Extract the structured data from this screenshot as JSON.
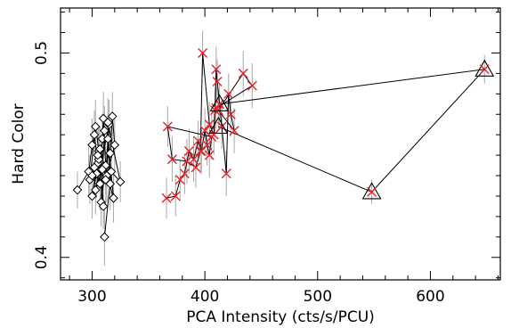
{
  "chart_data": {
    "type": "scatter",
    "xlabel": "PCA Intensity (cts/s/PCU)",
    "ylabel": "Hard Color",
    "xlim": [
      272,
      662
    ],
    "ylim": [
      0.389,
      0.522
    ],
    "x_ticks": [
      300,
      400,
      500,
      600
    ],
    "x_ticks_minor": [
      280,
      320,
      340,
      360,
      380,
      420,
      440,
      460,
      480,
      520,
      540,
      560,
      580,
      620,
      640,
      660
    ],
    "y_ticks": [
      0.4,
      0.5
    ],
    "y_ticks_minor": [
      0.39,
      0.41,
      0.42,
      0.43,
      0.44,
      0.45,
      0.46,
      0.47,
      0.48,
      0.49,
      0.51,
      0.52
    ],
    "grid": false,
    "legend": "none",
    "colors": {
      "black": "#000000",
      "red": "#e8202a",
      "errorbar": "#a8a8a8"
    },
    "series": [
      {
        "marker": "diamond",
        "color": "#000000",
        "connected": true,
        "points": [
          {
            "x": 287,
            "y": 0.433,
            "yerr": 0.009
          },
          {
            "x": 297,
            "y": 0.442,
            "yerr": 0.012
          },
          {
            "x": 300,
            "y": 0.455,
            "yerr": 0.013
          },
          {
            "x": 302,
            "y": 0.46,
            "yerr": 0.012
          },
          {
            "x": 305,
            "y": 0.446,
            "yerr": 0.014
          },
          {
            "x": 298,
            "y": 0.438,
            "yerr": 0.012
          },
          {
            "x": 303,
            "y": 0.464,
            "yerr": 0.013
          },
          {
            "x": 306,
            "y": 0.452,
            "yerr": 0.012
          },
          {
            "x": 300,
            "y": 0.43,
            "yerr": 0.011
          },
          {
            "x": 304,
            "y": 0.441,
            "yerr": 0.012
          },
          {
            "x": 307,
            "y": 0.436,
            "yerr": 0.013
          },
          {
            "x": 309,
            "y": 0.458,
            "yerr": 0.012
          },
          {
            "x": 310,
            "y": 0.468,
            "yerr": 0.013
          },
          {
            "x": 312,
            "y": 0.445,
            "yerr": 0.014
          },
          {
            "x": 308,
            "y": 0.427,
            "yerr": 0.012
          },
          {
            "x": 311,
            "y": 0.462,
            "yerr": 0.012
          },
          {
            "x": 306,
            "y": 0.448,
            "yerr": 0.011
          },
          {
            "x": 313,
            "y": 0.44,
            "yerr": 0.013
          },
          {
            "x": 315,
            "y": 0.465,
            "yerr": 0.012
          },
          {
            "x": 303,
            "y": 0.433,
            "yerr": 0.012
          },
          {
            "x": 309,
            "y": 0.443,
            "yerr": 0.014
          },
          {
            "x": 316,
            "y": 0.451,
            "yerr": 0.013
          },
          {
            "x": 318,
            "y": 0.469,
            "yerr": 0.012
          },
          {
            "x": 320,
            "y": 0.455,
            "yerr": 0.013
          },
          {
            "x": 312,
            "y": 0.438,
            "yerr": 0.012
          },
          {
            "x": 314,
            "y": 0.458,
            "yerr": 0.012
          },
          {
            "x": 319,
            "y": 0.429,
            "yerr": 0.012
          },
          {
            "x": 307,
            "y": 0.453,
            "yerr": 0.011
          },
          {
            "x": 310,
            "y": 0.425,
            "yerr": 0.011
          },
          {
            "x": 305,
            "y": 0.45,
            "yerr": 0.013
          },
          {
            "x": 302,
            "y": 0.444,
            "yerr": 0.012
          },
          {
            "x": 300,
            "y": 0.44,
            "yerr": 0.012
          },
          {
            "x": 316,
            "y": 0.436,
            "yerr": 0.013
          },
          {
            "x": 314,
            "y": 0.466,
            "yerr": 0.012
          },
          {
            "x": 325,
            "y": 0.437,
            "yerr": 0.01
          },
          {
            "x": 317,
            "y": 0.442,
            "yerr": 0.013
          },
          {
            "x": 311,
            "y": 0.41,
            "yerr": 0.014
          }
        ]
      },
      {
        "marker": "x",
        "color": "#e8202a",
        "connected": true,
        "points": [
          {
            "x": 366,
            "y": 0.429,
            "yerr": 0.01
          },
          {
            "x": 374,
            "y": 0.43,
            "yerr": 0.01
          },
          {
            "x": 378,
            "y": 0.438,
            "yerr": 0.01
          },
          {
            "x": 382,
            "y": 0.441,
            "yerr": 0.01
          },
          {
            "x": 386,
            "y": 0.452,
            "yerr": 0.011
          },
          {
            "x": 390,
            "y": 0.448,
            "yerr": 0.011
          },
          {
            "x": 394,
            "y": 0.457,
            "yerr": 0.01
          },
          {
            "x": 397,
            "y": 0.452,
            "yerr": 0.011
          },
          {
            "x": 400,
            "y": 0.462,
            "yerr": 0.011
          },
          {
            "x": 402,
            "y": 0.455,
            "yerr": 0.01
          },
          {
            "x": 404,
            "y": 0.45,
            "yerr": 0.011
          },
          {
            "x": 406,
            "y": 0.459,
            "yerr": 0.011
          },
          {
            "x": 367,
            "y": 0.464,
            "yerr": 0.01
          },
          {
            "x": 371,
            "y": 0.448,
            "yerr": 0.011
          },
          {
            "x": 384,
            "y": 0.447,
            "yerr": 0.011
          },
          {
            "x": 392,
            "y": 0.444,
            "yerr": 0.01
          },
          {
            "x": 396,
            "y": 0.452,
            "yerr": 0.011
          },
          {
            "x": 398,
            "y": 0.5,
            "yerr": 0.011
          },
          {
            "x": 404,
            "y": 0.465,
            "yerr": 0.011
          },
          {
            "x": 408,
            "y": 0.46,
            "yerr": 0.01
          },
          {
            "x": 409,
            "y": 0.472,
            "yerr": 0.011
          },
          {
            "x": 410,
            "y": 0.492,
            "yerr": 0.011
          },
          {
            "x": 411,
            "y": 0.486,
            "yerr": 0.011
          },
          {
            "x": 413,
            "y": 0.475,
            "yerr": 0.01
          },
          {
            "x": 415,
            "y": 0.464,
            "yerr": 0.011
          },
          {
            "x": 419,
            "y": 0.441,
            "yerr": 0.011
          },
          {
            "x": 421,
            "y": 0.48,
            "yerr": 0.01
          },
          {
            "x": 423,
            "y": 0.47,
            "yerr": 0.011
          },
          {
            "x": 426,
            "y": 0.462,
            "yerr": 0.011
          },
          {
            "x": 412,
            "y": 0.472,
            "yerr": 0.01
          },
          {
            "x": 434,
            "y": 0.49,
            "yerr": 0.011
          },
          {
            "x": 442,
            "y": 0.484,
            "yerr": 0.011
          },
          {
            "x": 410,
            "y": 0.473,
            "yerr": 0.01
          }
        ]
      },
      {
        "marker": "triangle",
        "color": "#000000",
        "connected": true,
        "points": [
          {
            "x": 413,
            "y": 0.475,
            "yerr": 0.0
          },
          {
            "x": 648,
            "y": 0.492,
            "yerr": 0.007
          },
          {
            "x": 548,
            "y": 0.432,
            "yerr": 0.006
          },
          {
            "x": 412,
            "y": 0.464,
            "yerr": 0.0
          }
        ]
      }
    ]
  }
}
